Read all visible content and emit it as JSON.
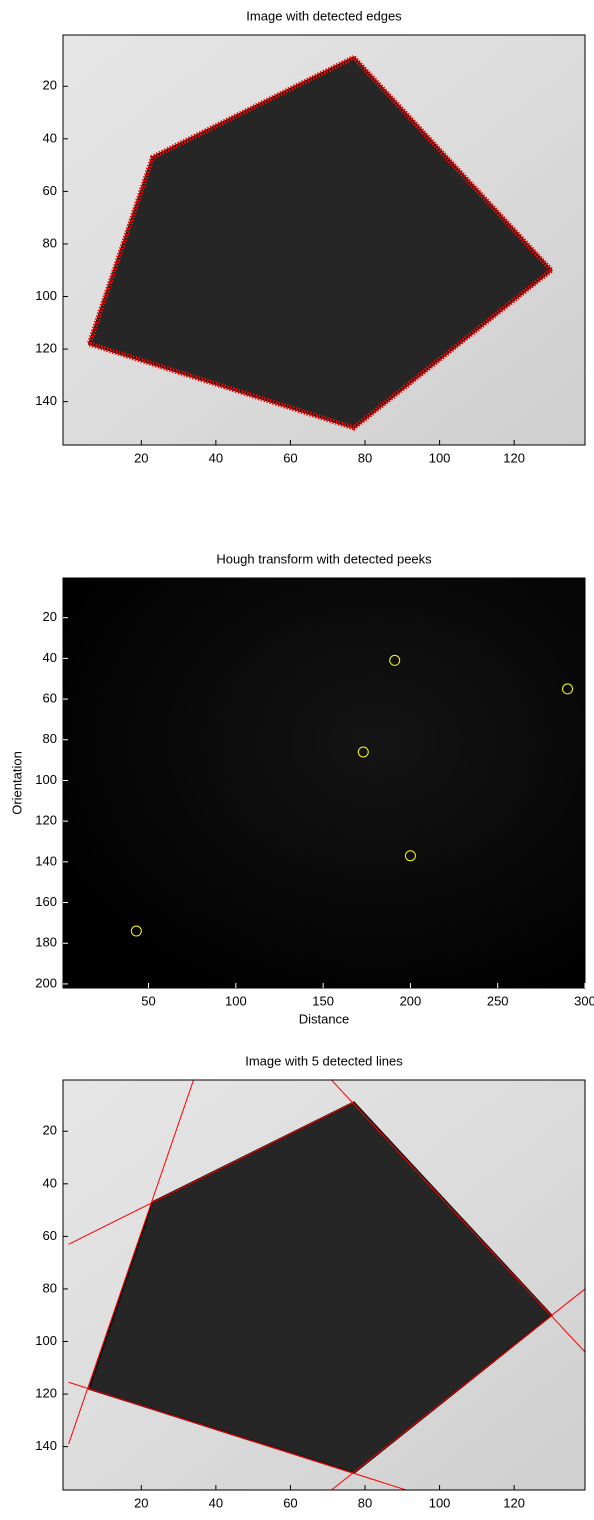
{
  "chart_data": [
    {
      "type": "image-edges",
      "title": "Image with detected edges",
      "xlim": [
        -1,
        139
      ],
      "ylim": [
        0.5,
        156.5
      ],
      "xticks": [
        20,
        40,
        60,
        80,
        100,
        120
      ],
      "yticks": [
        20,
        40,
        60,
        80,
        100,
        120,
        140
      ],
      "y_reversed": true,
      "color": "#ff0000",
      "edges": {
        "x": [
          77,
          130,
          77,
          6,
          23,
          77
        ],
        "y": [
          9,
          90,
          150,
          118,
          47,
          9
        ]
      }
    },
    {
      "type": "image-peaks",
      "title": "Hough transform with detected peeks",
      "xlabel": "Distance",
      "ylabel": "Orientation",
      "xlim": [
        1,
        300
      ],
      "ylim": [
        0.5,
        202
      ],
      "xticks": [
        50,
        100,
        150,
        200,
        250,
        300
      ],
      "yticks": [
        20,
        40,
        60,
        80,
        100,
        120,
        140,
        160,
        180,
        200
      ],
      "y_reversed": true,
      "color": "#ffff00",
      "peaks": {
        "x": [
          191,
          290,
          173,
          200,
          43
        ],
        "y": [
          41,
          55,
          86,
          137,
          174
        ]
      }
    },
    {
      "type": "image-lines",
      "title": "Image with 5 detected lines",
      "xlim": [
        -1,
        139
      ],
      "ylim": [
        0.5,
        156.5
      ],
      "xticks": [
        20,
        40,
        60,
        80,
        100,
        120
      ],
      "yticks": [
        20,
        40,
        60,
        80,
        100,
        120,
        140
      ],
      "y_reversed": true,
      "color": "#ff0000",
      "lines": [
        {
          "x": [
            34,
            0.5
          ],
          "y": [
            0.5,
            139
          ]
        },
        {
          "x": [
            0.5,
            77
          ],
          "y": [
            63,
            9
          ]
        },
        {
          "x": [
            71,
            139
          ],
          "y": [
            0.5,
            104
          ]
        },
        {
          "x": [
            139,
            71
          ],
          "y": [
            80,
            156.5
          ]
        },
        {
          "x": [
            0.5,
            91
          ],
          "y": [
            115.5,
            156.5
          ]
        }
      ]
    }
  ]
}
